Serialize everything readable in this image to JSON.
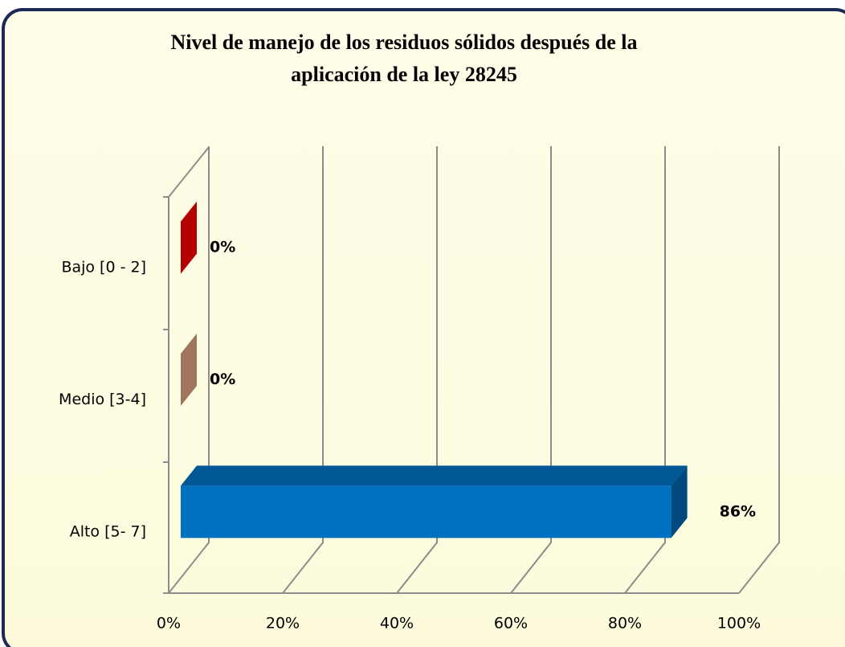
{
  "chart_data": {
    "type": "bar3d",
    "orientation": "horizontal",
    "title": "Nivel de manejo de los residuos sólidos después de la aplicación de la ley 28245",
    "title_lines": [
      "Nivel de manejo de los residuos sólidos después de la",
      "aplicación de la ley 28245"
    ],
    "categories": [
      "Bajo [0 - 2]",
      "Medio [3-4]",
      "Alto [5- 7]"
    ],
    "values": [
      0,
      0,
      86
    ],
    "value_labels": [
      "0%",
      "0%",
      "86%"
    ],
    "colors": [
      "#c00000",
      "#a87a62",
      "#0070c0"
    ],
    "xlim": [
      0,
      100
    ],
    "xticks": [
      {
        "value": 0,
        "label": "0%"
      },
      {
        "value": 20,
        "label": "20%"
      },
      {
        "value": 40,
        "label": "40%"
      },
      {
        "value": 60,
        "label": "60%"
      },
      {
        "value": 80,
        "label": "80%"
      },
      {
        "value": 100,
        "label": "100%"
      }
    ],
    "grid": true
  }
}
